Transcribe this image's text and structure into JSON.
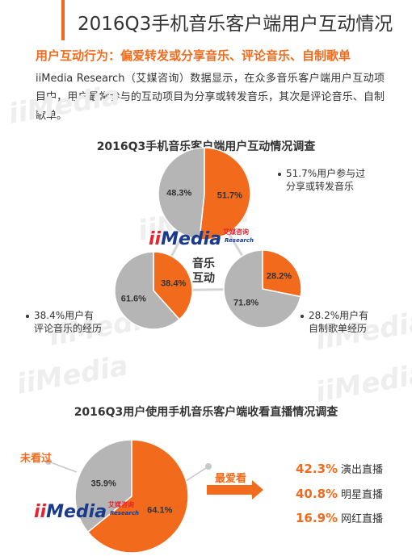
{
  "page": {
    "title": "2016Q3手机音乐客户端用户互动情况",
    "subtitle": "用户互动行为：偏爱转发或分享音乐、评论音乐、自制歌单",
    "description": "iiMedia Research（艾媒咨询）数据显示，在众多音乐客户端用户互动项目中，用户最常参与的互动项目为分享或转发音乐，其次是评论音乐、自制歌单。"
  },
  "brand": {
    "logo_main": "Media",
    "logo_prefix": "ii",
    "logo_cn": "艾媒咨询",
    "logo_en": "Research",
    "watermark": "iiMedia"
  },
  "colors": {
    "accent": "#f26b1d",
    "grey": "#b5b5b5",
    "logo_blue": "#1a3b8c",
    "logo_red": "#e8222e"
  },
  "chart_data": [
    {
      "type": "pie",
      "title": "2016Q3手机音乐客户端用户互动情况调查",
      "center_label": [
        "音乐",
        "互动"
      ],
      "pies": [
        {
          "annotation": [
            "51.7%用户参与过",
            "分享或转发音乐"
          ],
          "slices": [
            {
              "label": "51.7%",
              "value": 51.7,
              "color": "#f26b1d"
            },
            {
              "label": "48.3%",
              "value": 48.3,
              "color": "#b5b5b5"
            }
          ]
        },
        {
          "annotation": [
            "38.4%用户有",
            "评论音乐的经历"
          ],
          "slices": [
            {
              "label": "38.4%",
              "value": 38.4,
              "color": "#f26b1d"
            },
            {
              "label": "61.6%",
              "value": 61.6,
              "color": "#b5b5b5"
            }
          ]
        },
        {
          "annotation": [
            "28.2%用户有",
            "自制歌单经历"
          ],
          "slices": [
            {
              "label": "28.2%",
              "value": 28.2,
              "color": "#f26b1d"
            },
            {
              "label": "71.8%",
              "value": 71.8,
              "color": "#b5b5b5"
            }
          ]
        }
      ]
    },
    {
      "type": "pie",
      "title": "2016Q3用户使用手机音乐客户端收看直播情况调查",
      "slices": [
        {
          "label": "64.1%",
          "value": 64.1,
          "color": "#f26b1d"
        },
        {
          "label": "35.9%",
          "value": 35.9,
          "color": "#b5b5b5",
          "name": "未看过"
        }
      ],
      "favorite_label": "最爱看",
      "favorites": [
        {
          "pct": "42.3%",
          "name": "演出直播"
        },
        {
          "pct": "40.8%",
          "name": "明星直播"
        },
        {
          "pct": "16.9%",
          "name": "网红直播"
        }
      ]
    }
  ]
}
